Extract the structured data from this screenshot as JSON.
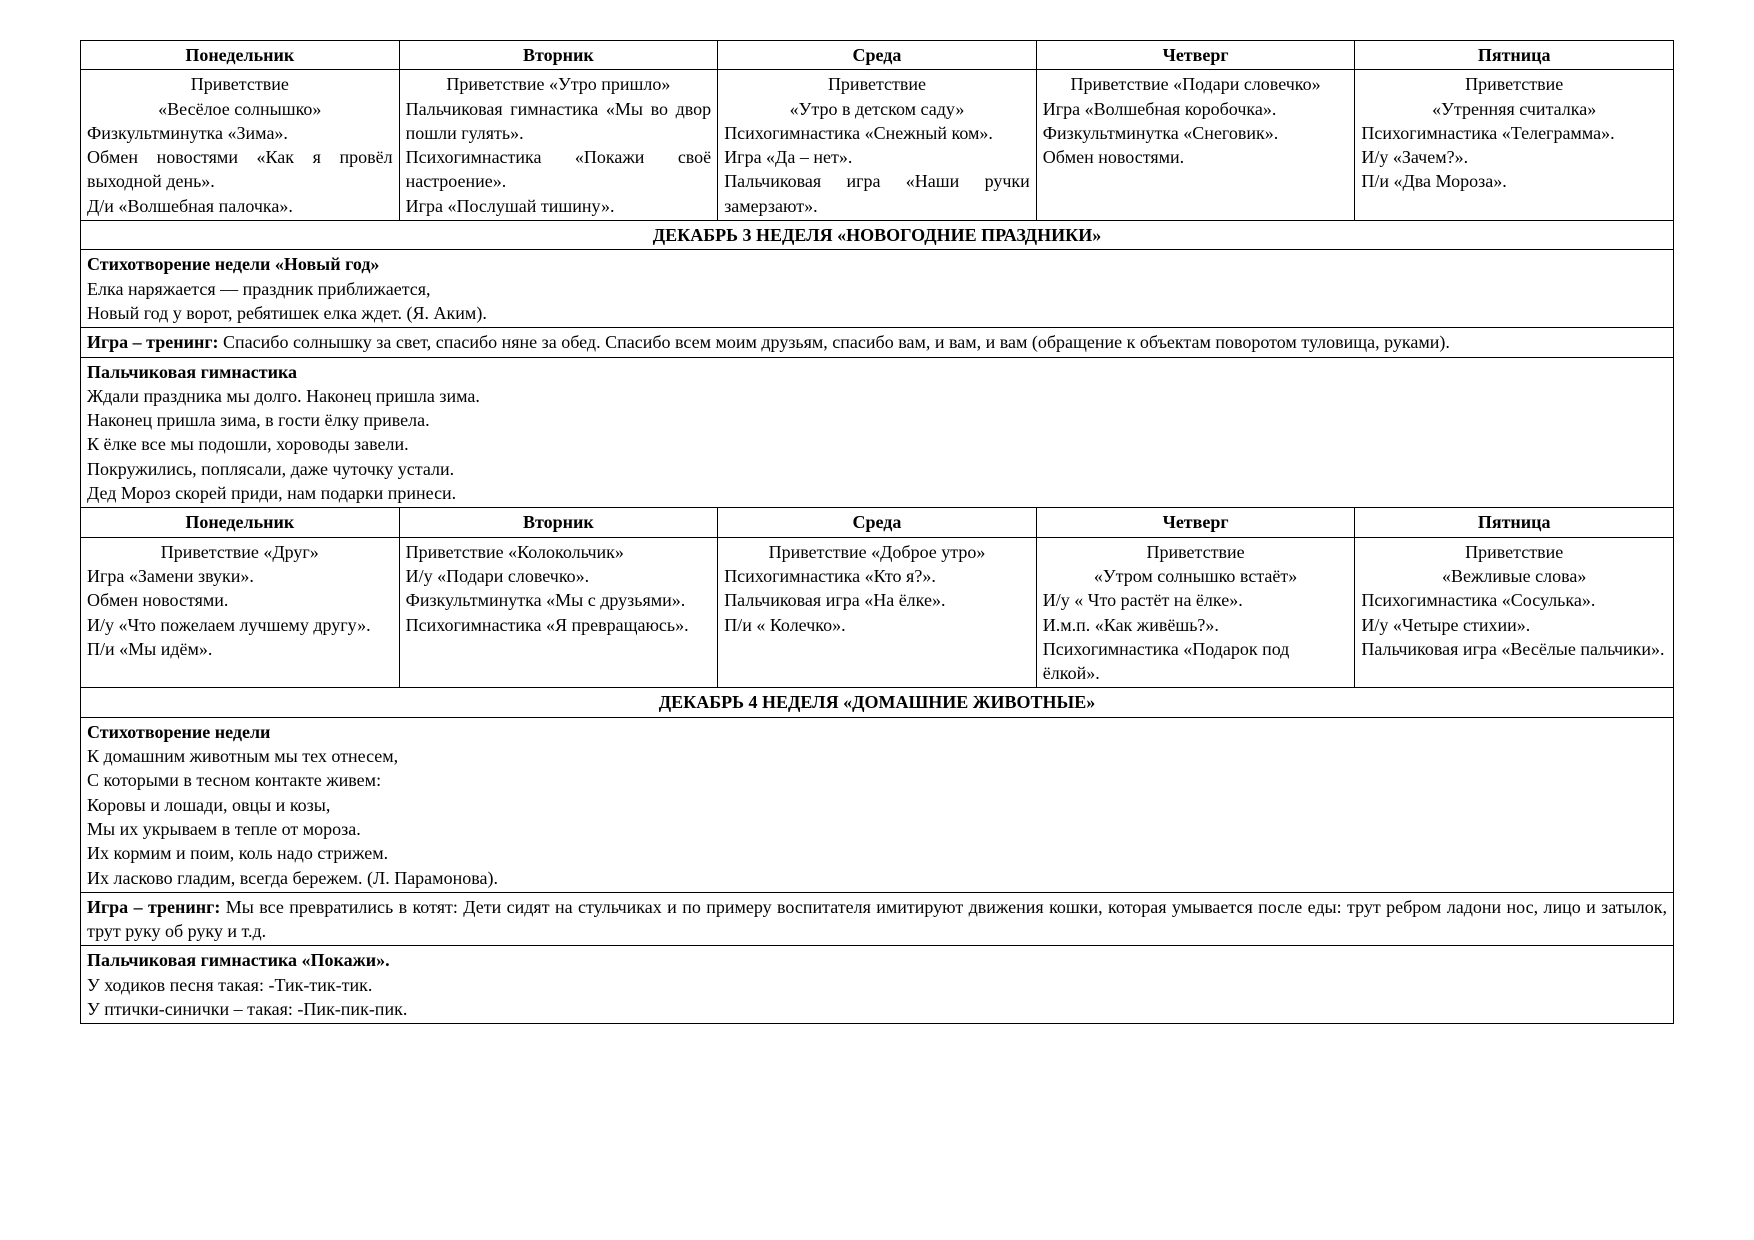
{
  "week3": {
    "headers": [
      "Понедельник",
      "Вторник",
      "Среда",
      "Четверг",
      "Пятница"
    ],
    "mon": {
      "l1": "Приветствие",
      "l2": "«Весёлое солнышко»",
      "l3": "Физкультминутка «Зима».",
      "l4": "Обмен новостями «Как я провёл выходной день».",
      "l5": "Д/и «Волшебная палочка»."
    },
    "tue": {
      "l1": "Приветствие «Утро пришло»",
      "l2": "Пальчиковая гимнастика «Мы во двор пошли гулять».",
      "l3": "Психогимнастика «Покажи своё настроение».",
      "l4": "Игра «Послушай тишину»."
    },
    "wed": {
      "l1": "Приветствие",
      "l2": "«Утро в детском саду»",
      "l3": "Психогимнастика «Снежный ком».",
      "l4": "Игра «Да – нет».",
      "l5": "Пальчиковая игра «Наши ручки замерзают»."
    },
    "thu": {
      "l1": "Приветствие «Подари словечко»",
      "l2": "Игра «Волшебная коробочка».",
      "l3": "Физкультминутка «Снеговик».",
      "l4": "Обмен новостями."
    },
    "fri": {
      "l1": "Приветствие",
      "l2": "«Утренняя считалка»",
      "l3": "Психогимнастика «Телеграмма».",
      "l4": "И/у «Зачем?».",
      "l5": "П/и «Два Мороза»."
    },
    "section_title": "ДЕКАБРЬ 3  НЕДЕЛЯ «НОВОГОДНИЕ ПРАЗДНИКИ»",
    "poem": {
      "title": "Стихотворение недели «Новый год»",
      "l1": "Елка наряжается — праздник приближается,",
      "l2": "Новый год у ворот,  ребятишек елка ждет. (Я. Аким)."
    },
    "game_label": "Игра – тренинг:",
    "game_text": " Спасибо солнышку за свет, спасибо няне за обед. Спасибо всем моим друзьям, спасибо вам, и вам, и вам (обращение к объектам поворотом туловища, руками).",
    "finger": {
      "title": "Пальчиковая гимнастика",
      "l1": "Ждали праздника мы долго. Наконец пришла зима.",
      "l2": "Наконец пришла зима, в гости ёлку привела.",
      "l3": "К ёлке все мы подошли, хороводы завели.",
      "l4": "Покружились, поплясали, даже чуточку устали.",
      "l5": "Дед Мороз скорей приди,  нам подарки принеси."
    }
  },
  "week4": {
    "headers": [
      "Понедельник",
      "Вторник",
      "Среда",
      "Четверг",
      "Пятница"
    ],
    "mon": {
      "l1": "Приветствие «Друг»",
      "l2": "Игра «Замени звуки».",
      "l3": "Обмен новостями.",
      "l4": "И/у «Что пожелаем лучшему другу».",
      "l5": "П/и «Мы идём»."
    },
    "tue": {
      "l1": "Приветствие «Колокольчик»",
      "l2": "И/у «Подари словечко».",
      "l3": "Физкультминутка «Мы с друзьями».",
      "l4": "Психогимнастика «Я превращаюсь»."
    },
    "wed": {
      "l1": "Приветствие «Доброе утро»",
      "l2": "Психогимнастика «Кто я?».",
      "l3": "Пальчиковая игра «На ёлке».",
      "l4": "П/и « Колечко»."
    },
    "thu": {
      "l1": "Приветствие",
      "l2": "«Утром солнышко встаёт»",
      "l3": "И/у « Что растёт на ёлке».",
      "l4": "И.м.п. «Как живёшь?».",
      "l5": "Психогимнастика «Подарок под ёлкой»."
    },
    "fri": {
      "l1": "Приветствие",
      "l2": "«Вежливые слова»",
      "l3": "Психогимнастика «Сосулька».",
      "l4": "И/у «Четыре стихии».",
      "l5": "Пальчиковая игра «Весёлые пальчики»."
    },
    "section_title": "ДЕКАБРЬ 4  НЕДЕЛЯ «ДОМАШНИЕ ЖИВОТНЫЕ»",
    "poem": {
      "title": "Стихотворение недели",
      "l1": "К домашним животным мы тех отнесем,",
      "l2": "С которыми в тесном контакте живем:",
      "l3": "Коровы и лошади, овцы и козы,",
      "l4": "Мы их укрываем в тепле от мороза.",
      "l5": "Их кормим и поим, коль надо стрижем.",
      "l6": "Их ласково гладим, всегда бережем. (Л. Парамонова)."
    },
    "game_label": "Игра – тренинг:",
    "game_text": " Мы все превратились в котят: Дети сидят на стульчиках и по примеру воспитателя имитируют движения кошки, которая умывается после еды: трут ребром ладони нос, лицо и затылок, трут руку об руку и т.д.",
    "finger": {
      "title": "Пальчиковая гимнастика «Покажи».",
      "l1": " У ходиков песня такая: -Тик-тик-тик.",
      "l2": "  У птички-синички – такая: -Пик-пик-пик."
    }
  }
}
